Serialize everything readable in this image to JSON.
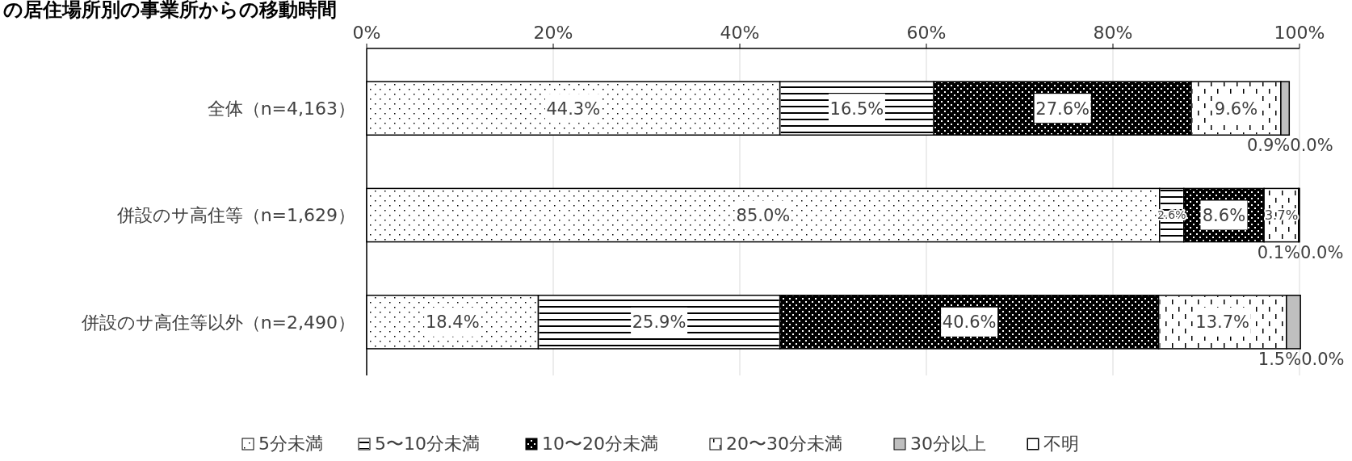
{
  "chart_data": {
    "type": "bar",
    "orientation": "horizontal",
    "stacked": true,
    "title": "の居住場所別の事業所からの移動時間",
    "categories": [
      "全体（n=4,163）",
      "併設のサ高住等（n=1,629）",
      "併設のサ高住等以外（n=2,490）"
    ],
    "series": [
      {
        "name": "5分未満",
        "color": "#ffffff",
        "values": [
          44.3,
          85.0,
          18.4
        ],
        "value_labels": [
          "44.3%",
          "85.0%",
          "18.4%"
        ]
      },
      {
        "name": "5〜10分未満",
        "color": "#ffffff",
        "values": [
          16.5,
          2.6,
          25.9
        ],
        "value_labels": [
          "16.5%",
          "2.6%",
          "25.9%"
        ]
      },
      {
        "name": "10〜20分未満",
        "color": "#000000",
        "values": [
          27.6,
          8.6,
          40.6
        ],
        "value_labels": [
          "27.6%",
          "8.6%",
          "40.6%"
        ]
      },
      {
        "name": "20〜30分未満",
        "color": "#ffffff",
        "values": [
          9.6,
          3.7,
          13.7
        ],
        "value_labels": [
          "9.6%",
          "3.7%",
          "13.7%"
        ]
      },
      {
        "name": "30分以上",
        "color": "#bfbfbf",
        "values": [
          0.9,
          0.1,
          1.5
        ],
        "value_labels": [
          "0.9%",
          "0.1%",
          "1.5%"
        ]
      },
      {
        "name": "不明",
        "color": "#000000",
        "values": [
          0.0,
          0.0,
          0.0
        ],
        "value_labels": [
          "0.0%",
          "0.0%",
          "0.0%"
        ]
      }
    ],
    "xlim": [
      0,
      100
    ],
    "xticks": [
      {
        "value": 0,
        "label": "0%"
      },
      {
        "value": 20,
        "label": "20%"
      },
      {
        "value": 40,
        "label": "40%"
      },
      {
        "value": 60,
        "label": "60%"
      },
      {
        "value": 80,
        "label": "80%"
      },
      {
        "value": 100,
        "label": "100%"
      }
    ],
    "grid": "x",
    "legend": "bottom"
  }
}
